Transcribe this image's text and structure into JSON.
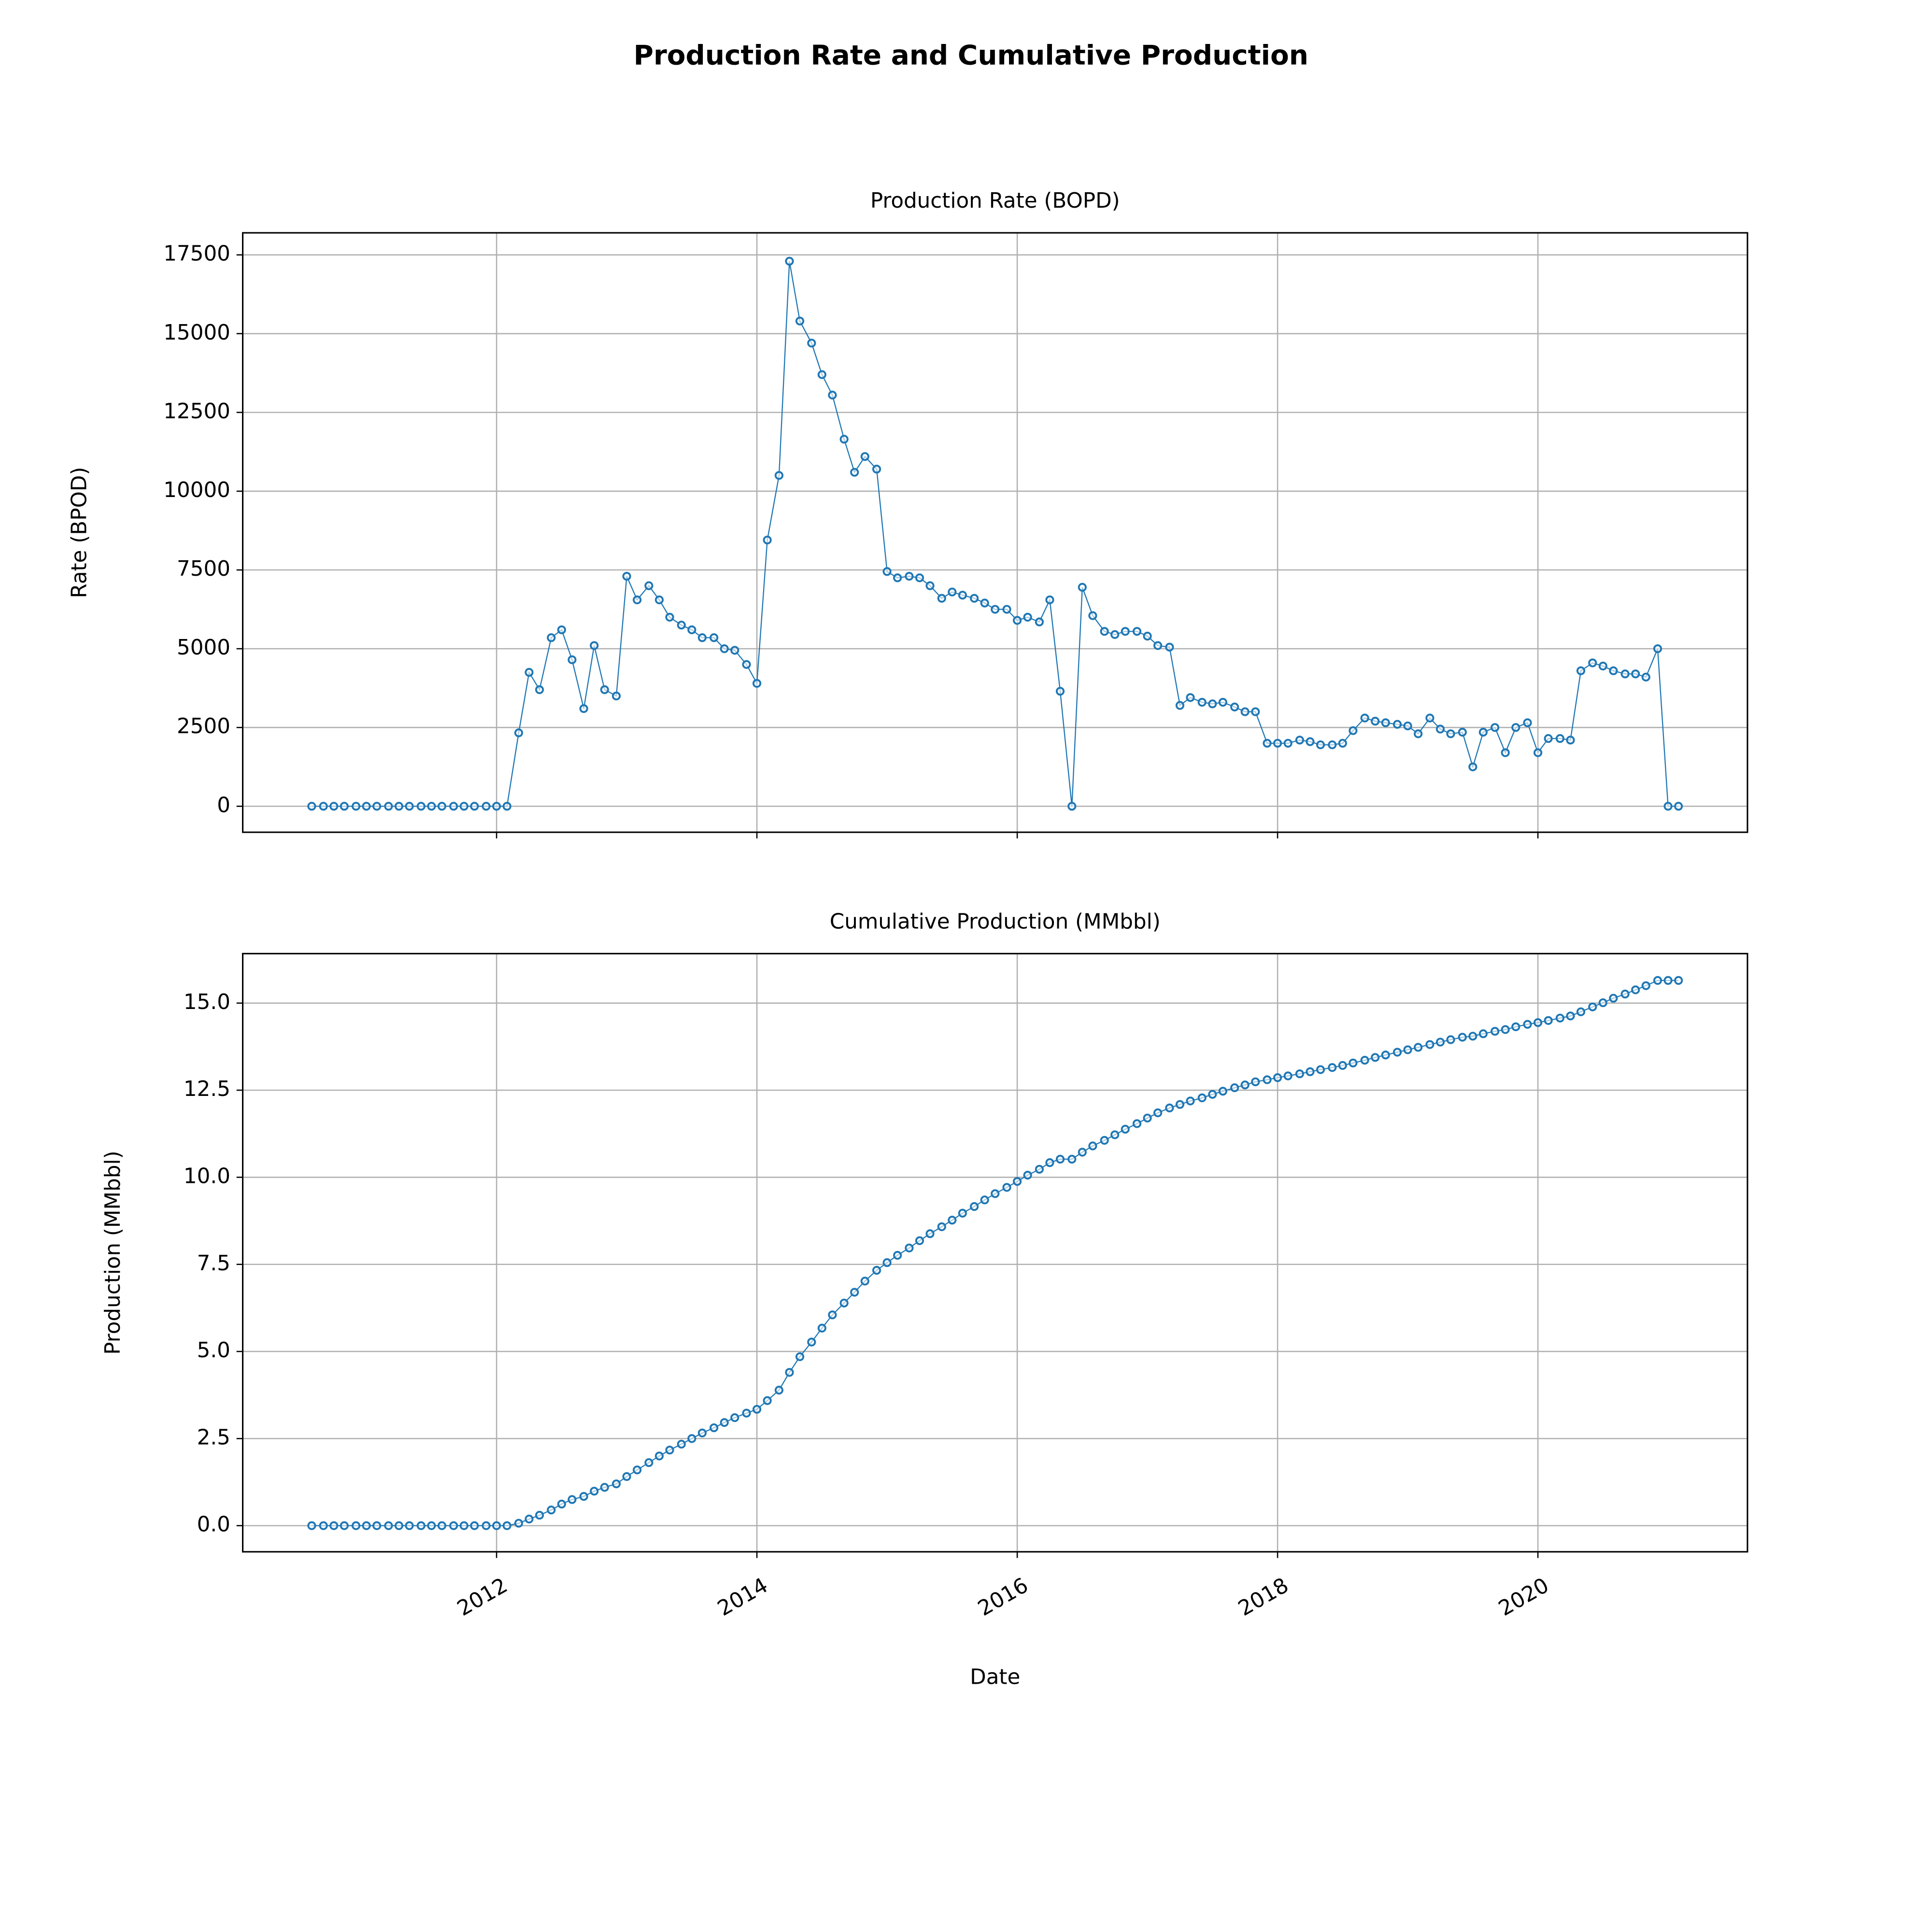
{
  "title": "Production Rate and Cumulative Production",
  "chart_data": [
    {
      "type": "line",
      "title": "Production Rate (BOPD)",
      "ylabel": "Rate (BPOD)",
      "color": "#1f77b4",
      "marker": "o",
      "grid": true,
      "x": [
        2010.58,
        2010.67,
        2010.75,
        2010.83,
        2010.92,
        2011,
        2011.08,
        2011.17,
        2011.25,
        2011.33,
        2011.42,
        2011.5,
        2011.58,
        2011.67,
        2011.75,
        2011.83,
        2011.92,
        2012,
        2012.08,
        2012.17,
        2012.25,
        2012.33,
        2012.42,
        2012.5,
        2012.58,
        2012.67,
        2012.75,
        2012.83,
        2012.92,
        2013,
        2013.08,
        2013.17,
        2013.25,
        2013.33,
        2013.42,
        2013.5,
        2013.58,
        2013.67,
        2013.75,
        2013.83,
        2013.92,
        2014,
        2014.08,
        2014.17,
        2014.25,
        2014.33,
        2014.42,
        2014.5,
        2014.58,
        2014.67,
        2014.75,
        2014.83,
        2014.92,
        2015,
        2015.08,
        2015.17,
        2015.25,
        2015.33,
        2015.42,
        2015.5,
        2015.58,
        2015.67,
        2015.75,
        2015.83,
        2015.92,
        2016,
        2016.08,
        2016.17,
        2016.25,
        2016.33,
        2016.42,
        2016.5,
        2016.58,
        2016.67,
        2016.75,
        2016.83,
        2016.92,
        2017,
        2017.08,
        2017.17,
        2017.25,
        2017.33,
        2017.42,
        2017.5,
        2017.58,
        2017.67,
        2017.75,
        2017.83,
        2017.92,
        2018,
        2018.08,
        2018.17,
        2018.25,
        2018.33,
        2018.42,
        2018.5,
        2018.58,
        2018.67,
        2018.75,
        2018.83,
        2018.92,
        2019,
        2019.08,
        2019.17,
        2019.25,
        2019.33,
        2019.42,
        2019.5,
        2019.58,
        2019.67,
        2019.75,
        2019.83,
        2019.92,
        2020,
        2020.08,
        2020.17,
        2020.25,
        2020.33,
        2020.42,
        2020.5,
        2020.58,
        2020.67,
        2020.75,
        2020.83,
        2020.92,
        2021,
        2021.08
      ],
      "values": [
        0,
        0,
        0,
        0,
        0,
        0,
        0,
        0,
        0,
        0,
        0,
        0,
        0,
        0,
        0,
        0,
        0,
        0,
        0,
        2330,
        4250,
        3700,
        5350,
        5600,
        4650,
        3100,
        5100,
        3700,
        3500,
        7300,
        6550,
        7000,
        6550,
        6000,
        5750,
        5600,
        5350,
        5350,
        5000,
        4950,
        4500,
        3900,
        8450,
        10500,
        17300,
        15400,
        14700,
        13700,
        13050,
        11650,
        10600,
        11100,
        10700,
        7450,
        7250,
        7300,
        7250,
        7000,
        6600,
        6800,
        6700,
        6600,
        6450,
        6250,
        6250,
        5900,
        6000,
        5850,
        6550,
        3650,
        0,
        6950,
        6050,
        5550,
        5450,
        5550,
        5550,
        5400,
        5100,
        5050,
        3200,
        3450,
        3300,
        3250,
        3300,
        3150,
        3000,
        3000,
        2000,
        2000,
        2000,
        2100,
        2050,
        1950,
        1950,
        2000,
        2400,
        2800,
        2700,
        2650,
        2600,
        2550,
        2300,
        2800,
        2450,
        2300,
        2350,
        1250,
        2350,
        2500,
        1700,
        2500,
        2650,
        1700,
        2150,
        2150,
        2100,
        4300,
        4550,
        4450,
        4300,
        4200,
        4200,
        4100,
        5000,
        0,
        0
      ],
      "xlim": [
        2010.05,
        2021.61
      ],
      "xticks": [
        2012,
        2014,
        2016,
        2018,
        2020
      ],
      "ylim": [
        -825,
        18200
      ],
      "yticks": [
        0,
        2500,
        5000,
        7500,
        10000,
        12500,
        15000,
        17500
      ]
    },
    {
      "type": "line",
      "title": "Cumulative Production (MMbbl)",
      "ylabel": "Production (MMbbl)",
      "xlabel": "Date",
      "color": "#1f77b4",
      "marker": "o",
      "grid": true,
      "x": [
        2010.58,
        2010.67,
        2010.75,
        2010.83,
        2010.92,
        2011,
        2011.08,
        2011.17,
        2011.25,
        2011.33,
        2011.42,
        2011.5,
        2011.58,
        2011.67,
        2011.75,
        2011.83,
        2011.92,
        2012,
        2012.08,
        2012.17,
        2012.25,
        2012.33,
        2012.42,
        2012.5,
        2012.58,
        2012.67,
        2012.75,
        2012.83,
        2012.92,
        2013,
        2013.08,
        2013.17,
        2013.25,
        2013.33,
        2013.42,
        2013.5,
        2013.58,
        2013.67,
        2013.75,
        2013.83,
        2013.92,
        2014,
        2014.08,
        2014.17,
        2014.25,
        2014.33,
        2014.42,
        2014.5,
        2014.58,
        2014.67,
        2014.75,
        2014.83,
        2014.92,
        2015,
        2015.08,
        2015.17,
        2015.25,
        2015.33,
        2015.42,
        2015.5,
        2015.58,
        2015.67,
        2015.75,
        2015.83,
        2015.92,
        2016,
        2016.08,
        2016.17,
        2016.25,
        2016.33,
        2016.42,
        2016.5,
        2016.58,
        2016.67,
        2016.75,
        2016.83,
        2016.92,
        2017,
        2017.08,
        2017.17,
        2017.25,
        2017.33,
        2017.42,
        2017.5,
        2017.58,
        2017.67,
        2017.75,
        2017.83,
        2017.92,
        2018,
        2018.08,
        2018.17,
        2018.25,
        2018.33,
        2018.42,
        2018.5,
        2018.58,
        2018.67,
        2018.75,
        2018.83,
        2018.92,
        2019,
        2019.08,
        2019.17,
        2019.25,
        2019.33,
        2019.42,
        2019.5,
        2019.58,
        2019.67,
        2019.75,
        2019.83,
        2019.92,
        2020,
        2020.08,
        2020.17,
        2020.25,
        2020.33,
        2020.42,
        2020.5,
        2020.58,
        2020.67,
        2020.75,
        2020.83,
        2020.92,
        2021,
        2021.08
      ],
      "values": [
        0,
        0,
        0,
        0,
        0,
        0,
        0,
        0,
        0,
        0,
        0,
        0,
        0,
        0,
        0,
        0,
        0,
        0,
        0,
        0.07,
        0.19,
        0.3,
        0.45,
        0.62,
        0.75,
        0.84,
        0.99,
        1.1,
        1.2,
        1.41,
        1.6,
        1.81,
        2.0,
        2.17,
        2.34,
        2.5,
        2.66,
        2.81,
        2.96,
        3.1,
        3.23,
        3.34,
        3.59,
        3.89,
        4.4,
        4.85,
        5.27,
        5.67,
        6.05,
        6.39,
        6.7,
        7.02,
        7.33,
        7.55,
        7.76,
        7.97,
        8.18,
        8.38,
        8.58,
        8.77,
        8.97,
        9.16,
        9.35,
        9.53,
        9.71,
        9.88,
        10.06,
        10.23,
        10.42,
        10.52,
        10.52,
        10.72,
        10.9,
        11.06,
        11.22,
        11.38,
        11.54,
        11.7,
        11.85,
        11.99,
        12.09,
        12.19,
        12.28,
        12.38,
        12.47,
        12.57,
        12.65,
        12.74,
        12.8,
        12.86,
        12.91,
        12.97,
        13.03,
        13.09,
        13.15,
        13.21,
        13.28,
        13.36,
        13.44,
        13.51,
        13.59,
        13.66,
        13.73,
        13.81,
        13.88,
        13.95,
        14.02,
        14.05,
        14.12,
        14.19,
        14.24,
        14.32,
        14.39,
        14.44,
        14.5,
        14.57,
        14.63,
        14.75,
        14.89,
        15.01,
        15.14,
        15.26,
        15.38,
        15.5,
        15.65,
        15.65,
        15.65
      ],
      "xlim": [
        2010.05,
        2021.61
      ],
      "xticks": [
        2012,
        2014,
        2016,
        2018,
        2020
      ],
      "ylim": [
        -0.75,
        16.42
      ],
      "yticks": [
        {
          "value": 0,
          "label": "0.0"
        },
        2.5,
        {
          "value": 5,
          "label": "5.0"
        },
        7.5,
        {
          "value": 10,
          "label": "10.0"
        },
        12.5,
        {
          "value": 15,
          "label": "15.0"
        }
      ]
    }
  ]
}
